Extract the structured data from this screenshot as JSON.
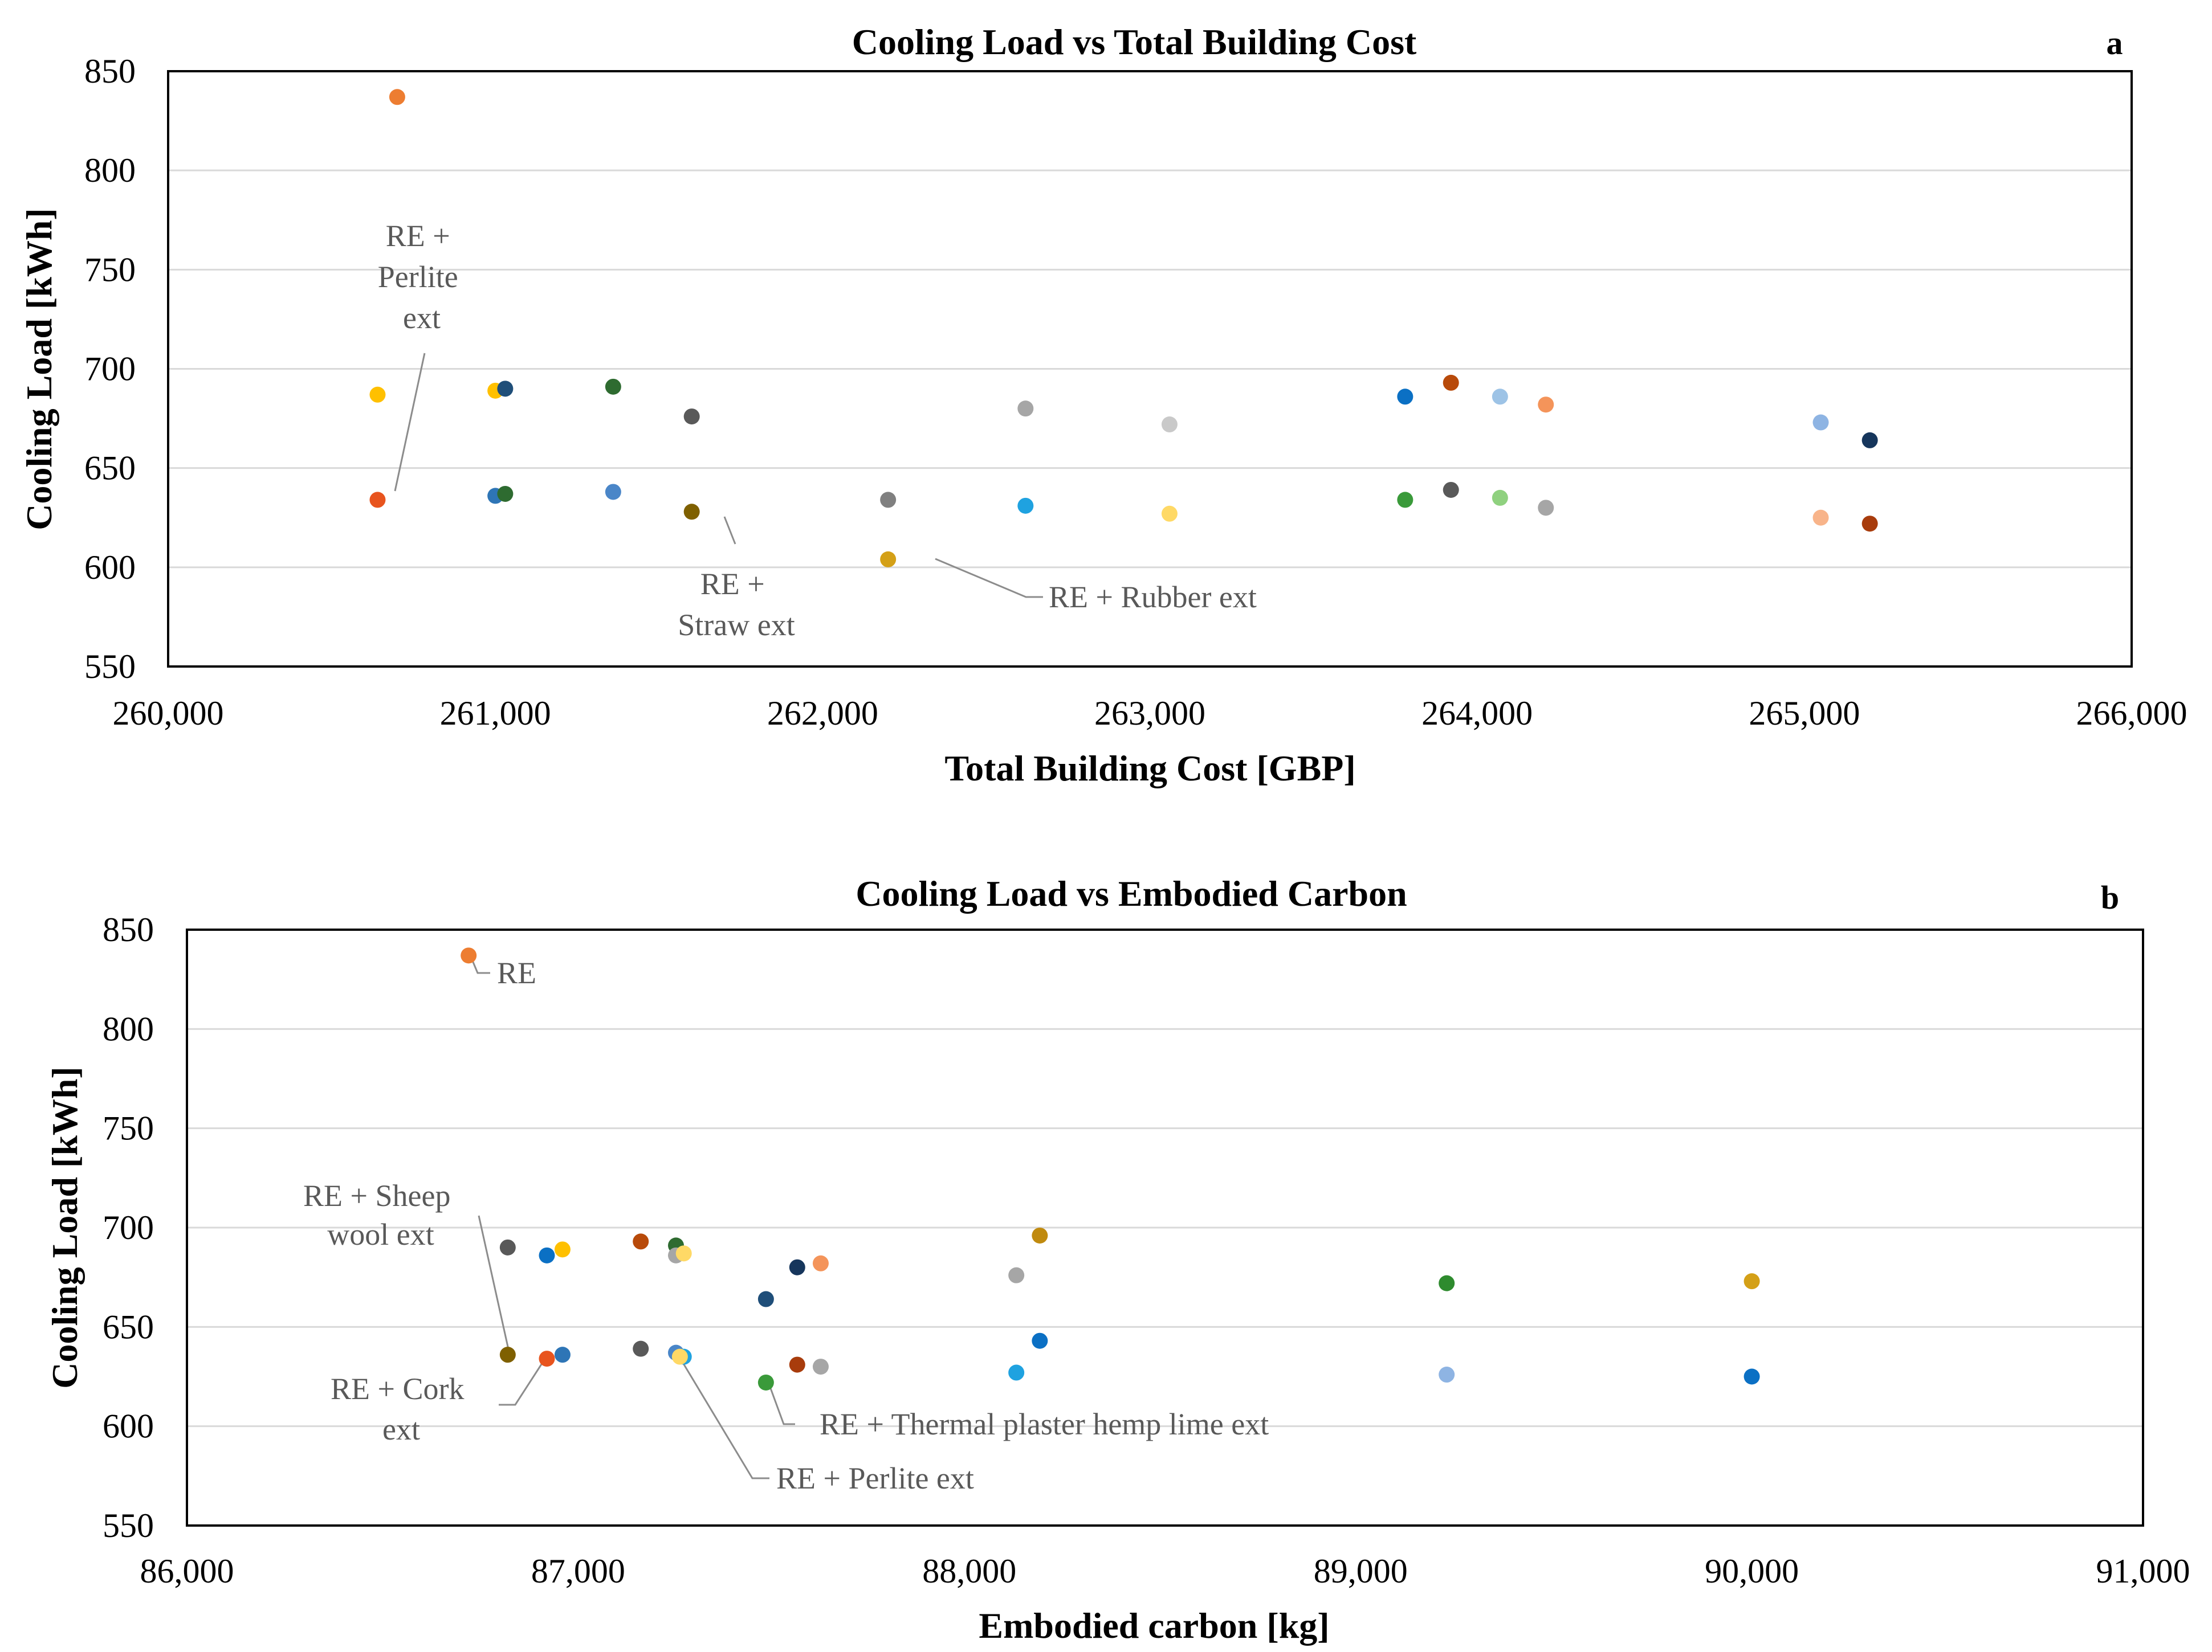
{
  "chart_data": [
    {
      "type": "scatter",
      "panel": "a",
      "title": "Cooling Load vs Total Building Cost",
      "xlabel": "Total Building Cost [GBP]",
      "ylabel": "Cooling Load [kWh]",
      "xlim": [
        260000,
        266000
      ],
      "ylim": [
        550,
        850
      ],
      "xticks": [
        260000,
        261000,
        262000,
        263000,
        264000,
        265000,
        266000
      ],
      "xtick_labels": [
        "260,000",
        "261,000",
        "262,000",
        "263,000",
        "264,000",
        "265,000",
        "266,000"
      ],
      "yticks": [
        550,
        600,
        650,
        700,
        750,
        800,
        850
      ],
      "ytick_labels": [
        "550",
        "600",
        "650",
        "700",
        "750",
        "800",
        "850"
      ],
      "grid": "horizontal",
      "points": [
        {
          "x": 260700,
          "y": 837,
          "color": "#ed7d31"
        },
        {
          "x": 260640,
          "y": 687,
          "color": "#ffc000"
        },
        {
          "x": 260640,
          "y": 634,
          "color": "#e8541e"
        },
        {
          "x": 261000,
          "y": 689,
          "color": "#ffc000"
        },
        {
          "x": 261030,
          "y": 690,
          "color": "#1f4e79"
        },
        {
          "x": 261000,
          "y": 636,
          "color": "#2e75b6"
        },
        {
          "x": 261030,
          "y": 637,
          "color": "#2e6b30"
        },
        {
          "x": 261360,
          "y": 691,
          "color": "#2e6b30"
        },
        {
          "x": 261360,
          "y": 638,
          "color": "#4a86c8"
        },
        {
          "x": 261600,
          "y": 676,
          "color": "#595959"
        },
        {
          "x": 261600,
          "y": 628,
          "color": "#7f6000"
        },
        {
          "x": 262200,
          "y": 634,
          "color": "#808080"
        },
        {
          "x": 262200,
          "y": 604,
          "color": "#d4a017"
        },
        {
          "x": 262620,
          "y": 680,
          "color": "#a6a6a6"
        },
        {
          "x": 262620,
          "y": 631,
          "color": "#1fa2e0"
        },
        {
          "x": 263060,
          "y": 672,
          "color": "#c9c9c9"
        },
        {
          "x": 263060,
          "y": 627,
          "color": "#ffd966"
        },
        {
          "x": 263780,
          "y": 686,
          "color": "#0b70c4"
        },
        {
          "x": 263780,
          "y": 634,
          "color": "#3a9a3a"
        },
        {
          "x": 263920,
          "y": 693,
          "color": "#b84a0a"
        },
        {
          "x": 263920,
          "y": 639,
          "color": "#595959"
        },
        {
          "x": 264070,
          "y": 686,
          "color": "#9dc3e6"
        },
        {
          "x": 264070,
          "y": 635,
          "color": "#8fd17f"
        },
        {
          "x": 264210,
          "y": 682,
          "color": "#f4945a"
        },
        {
          "x": 264210,
          "y": 630,
          "color": "#a6a6a6"
        },
        {
          "x": 265050,
          "y": 673,
          "color": "#8eb4e3"
        },
        {
          "x": 265050,
          "y": 625,
          "color": "#f8b48a"
        },
        {
          "x": 265200,
          "y": 664,
          "color": "#16365c"
        },
        {
          "x": 265200,
          "y": 622,
          "color": "#a83c0c"
        }
      ],
      "annotations": [
        {
          "lines": [
            "RE +",
            "Perlite",
            "ext"
          ],
          "point_index": 2
        },
        {
          "lines": [
            "RE +",
            "Straw ext"
          ],
          "point_index": 10
        },
        {
          "lines": [
            "RE + Rubber ext"
          ],
          "point_index": 12
        }
      ]
    },
    {
      "type": "scatter",
      "panel": "b",
      "title": "Cooling Load vs Embodied Carbon",
      "xlabel": "Embodied carbon [kg]",
      "ylabel": "Cooling Load [kWh]",
      "xlim": [
        86000,
        91000
      ],
      "ylim": [
        550,
        850
      ],
      "xticks": [
        86000,
        87000,
        88000,
        89000,
        90000,
        91000
      ],
      "xtick_labels": [
        "86,000",
        "87,000",
        "88,000",
        "89,000",
        "90,000",
        "91,000"
      ],
      "yticks": [
        550,
        600,
        650,
        700,
        750,
        800,
        850
      ],
      "ytick_labels": [
        "550",
        "600",
        "650",
        "700",
        "750",
        "800",
        "850"
      ],
      "grid": "horizontal",
      "points": [
        {
          "x": 86720,
          "y": 837,
          "color": "#ed7d31"
        },
        {
          "x": 86820,
          "y": 690,
          "color": "#595959"
        },
        {
          "x": 86920,
          "y": 686,
          "color": "#0b70c4"
        },
        {
          "x": 86960,
          "y": 689,
          "color": "#ffc000"
        },
        {
          "x": 86820,
          "y": 636,
          "color": "#7f6000"
        },
        {
          "x": 86920,
          "y": 634,
          "color": "#e8541e"
        },
        {
          "x": 86960,
          "y": 636,
          "color": "#2e75b6"
        },
        {
          "x": 87160,
          "y": 693,
          "color": "#b84a0a"
        },
        {
          "x": 87160,
          "y": 639,
          "color": "#595959"
        },
        {
          "x": 87250,
          "y": 691,
          "color": "#2e6b30"
        },
        {
          "x": 87250,
          "y": 686,
          "color": "#a6a6a6"
        },
        {
          "x": 87270,
          "y": 687,
          "color": "#ffd966"
        },
        {
          "x": 87250,
          "y": 637,
          "color": "#4a86c8"
        },
        {
          "x": 87270,
          "y": 635,
          "color": "#1fa2e0"
        },
        {
          "x": 87260,
          "y": 635,
          "color": "#ffd966"
        },
        {
          "x": 87480,
          "y": 664,
          "color": "#1f4e79"
        },
        {
          "x": 87480,
          "y": 622,
          "color": "#3a9a3a"
        },
        {
          "x": 87560,
          "y": 680,
          "color": "#16365c"
        },
        {
          "x": 87560,
          "y": 631,
          "color": "#a83c0c"
        },
        {
          "x": 87620,
          "y": 682,
          "color": "#f4945a"
        },
        {
          "x": 87620,
          "y": 630,
          "color": "#a6a6a6"
        },
        {
          "x": 88120,
          "y": 676,
          "color": "#a6a6a6"
        },
        {
          "x": 88120,
          "y": 627,
          "color": "#1fa2e0"
        },
        {
          "x": 88180,
          "y": 696,
          "color": "#c08a0f"
        },
        {
          "x": 88180,
          "y": 643,
          "color": "#0b70c4"
        },
        {
          "x": 89220,
          "y": 672,
          "color": "#2e8b2e"
        },
        {
          "x": 89220,
          "y": 626,
          "color": "#8eb4e3"
        },
        {
          "x": 90000,
          "y": 673,
          "color": "#d4a017"
        },
        {
          "x": 90000,
          "y": 625,
          "color": "#0b70c4"
        }
      ],
      "annotations": [
        {
          "lines": [
            "RE"
          ],
          "point_index": 0
        },
        {
          "lines": [
            "RE + Sheep",
            "wool ext"
          ],
          "point_index": 4
        },
        {
          "lines": [
            "RE + Cork",
            "ext"
          ],
          "point_index": 5
        },
        {
          "lines": [
            "RE + Thermal plaster hemp lime ext"
          ],
          "point_index": 16
        },
        {
          "lines": [
            "RE + Perlite ext"
          ],
          "point_index": 14
        }
      ]
    }
  ]
}
